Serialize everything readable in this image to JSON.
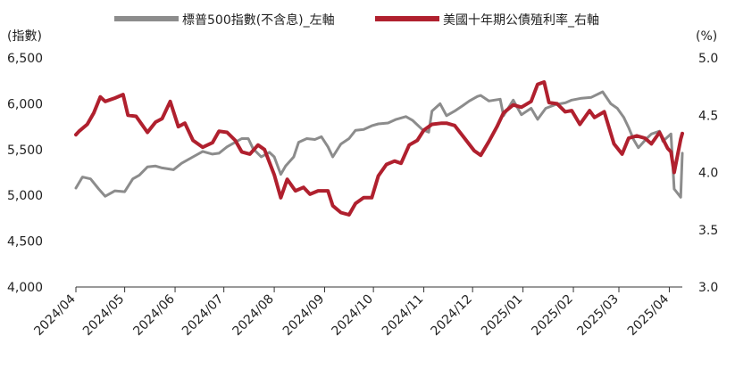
{
  "chart_data": {
    "type": "line",
    "left_axis": {
      "title": "(指數)",
      "ylim": [
        4000,
        6500
      ],
      "ticks": [
        "4,000",
        "4,500",
        "5,000",
        "5,500",
        "6,000",
        "6,500"
      ]
    },
    "right_axis": {
      "title": "(%)",
      "ylim": [
        3.0,
        5.0
      ],
      "ticks": [
        "3.0",
        "3.5",
        "4.0",
        "4.5",
        "5.0"
      ]
    },
    "x_ticks": [
      "2024/04",
      "2024/05",
      "2024/06",
      "2024/07",
      "2024/08",
      "2024/09",
      "2024/10",
      "2024/11",
      "2024/12",
      "2025/01",
      "2025/02",
      "2025/03",
      "2025/04"
    ],
    "series": [
      {
        "name": "標普500指數(不含息)_左軸",
        "axis": "left",
        "color": "#8c8c8c",
        "x": [
          "2024/04/01",
          "2024/04/05",
          "2024/04/10",
          "2024/04/15",
          "2024/04/19",
          "2024/04/25",
          "2024/05/01",
          "2024/05/06",
          "2024/05/10",
          "2024/05/15",
          "2024/05/20",
          "2024/05/24",
          "2024/05/31",
          "2024/06/05",
          "2024/06/12",
          "2024/06/18",
          "2024/06/24",
          "2024/06/28",
          "2024/07/03",
          "2024/07/08",
          "2024/07/12",
          "2024/07/16",
          "2024/07/19",
          "2024/07/24",
          "2024/07/29",
          "2024/08/01",
          "2024/08/05",
          "2024/08/08",
          "2024/08/13",
          "2024/08/16",
          "2024/08/21",
          "2024/08/26",
          "2024/08/30",
          "2024/09/03",
          "2024/09/06",
          "2024/09/11",
          "2024/09/16",
          "2024/09/20",
          "2024/09/25",
          "2024/09/30",
          "2024/10/04",
          "2024/10/10",
          "2024/10/15",
          "2024/10/21",
          "2024/10/25",
          "2024/10/31",
          "2024/11/04",
          "2024/11/06",
          "2024/11/11",
          "2024/11/15",
          "2024/11/20",
          "2024/11/25",
          "2024/11/29",
          "2024/12/04",
          "2024/12/06",
          "2024/12/11",
          "2024/12/18",
          "2024/12/20",
          "2024/12/26",
          "2024/12/31",
          "2025/01/06",
          "2025/01/10",
          "2025/01/15",
          "2025/01/21",
          "2025/01/27",
          "2025/01/31",
          "2025/02/06",
          "2025/02/12",
          "2025/02/19",
          "2025/02/24",
          "2025/02/28",
          "2025/03/04",
          "2025/03/07",
          "2025/03/10",
          "2025/03/13",
          "2025/03/18",
          "2025/03/21",
          "2025/03/26",
          "2025/03/28",
          "2025/04/02",
          "2025/04/04",
          "2025/04/08",
          "2025/04/09"
        ],
        "values": [
          5080,
          5200,
          5180,
          5070,
          4990,
          5050,
          5040,
          5180,
          5220,
          5310,
          5320,
          5300,
          5280,
          5350,
          5420,
          5480,
          5450,
          5460,
          5530,
          5580,
          5620,
          5620,
          5510,
          5420,
          5470,
          5420,
          5230,
          5320,
          5420,
          5580,
          5620,
          5610,
          5640,
          5530,
          5420,
          5560,
          5620,
          5710,
          5720,
          5760,
          5780,
          5790,
          5830,
          5860,
          5820,
          5720,
          5690,
          5920,
          6000,
          5870,
          5920,
          5980,
          6030,
          6080,
          6090,
          6030,
          6050,
          5870,
          6040,
          5880,
          5950,
          5830,
          5950,
          5990,
          6010,
          6040,
          6060,
          6070,
          6130,
          6000,
          5950,
          5850,
          5740,
          5610,
          5520,
          5620,
          5670,
          5700,
          5590,
          5670,
          5070,
          4980,
          5460
        ]
      },
      {
        "name": "美國十年期公債殖利率_右軸",
        "axis": "right",
        "color": "#b0202e",
        "x": [
          "2024/04/01",
          "2024/04/03",
          "2024/04/08",
          "2024/04/12",
          "2024/04/16",
          "2024/04/19",
          "2024/04/25",
          "2024/04/30",
          "2024/05/03",
          "2024/05/08",
          "2024/05/15",
          "2024/05/20",
          "2024/05/24",
          "2024/05/29",
          "2024/06/03",
          "2024/06/07",
          "2024/06/12",
          "2024/06/18",
          "2024/06/24",
          "2024/06/28",
          "2024/07/03",
          "2024/07/08",
          "2024/07/12",
          "2024/07/17",
          "2024/07/22",
          "2024/07/26",
          "2024/08/01",
          "2024/08/05",
          "2024/08/09",
          "2024/08/14",
          "2024/08/19",
          "2024/08/23",
          "2024/08/28",
          "2024/09/03",
          "2024/09/06",
          "2024/09/11",
          "2024/09/16",
          "2024/09/20",
          "2024/09/25",
          "2024/09/30",
          "2024/10/04",
          "2024/10/09",
          "2024/10/14",
          "2024/10/18",
          "2024/10/23",
          "2024/10/28",
          "2024/11/01",
          "2024/11/06",
          "2024/11/12",
          "2024/11/15",
          "2024/11/20",
          "2024/11/26",
          "2024/12/02",
          "2024/12/06",
          "2024/12/11",
          "2024/12/16",
          "2024/12/20",
          "2024/12/26",
          "2024/12/31",
          "2025/01/06",
          "2025/01/10",
          "2025/01/14",
          "2025/01/17",
          "2025/01/22",
          "2025/01/27",
          "2025/01/31",
          "2025/02/05",
          "2025/02/11",
          "2025/02/14",
          "2025/02/20",
          "2025/02/26",
          "2025/03/03",
          "2025/03/07",
          "2025/03/12",
          "2025/03/17",
          "2025/03/21",
          "2025/03/26",
          "2025/03/31",
          "2025/04/02",
          "2025/04/04",
          "2025/04/08",
          "2025/04/09"
        ],
        "values": [
          4.33,
          4.36,
          4.42,
          4.52,
          4.66,
          4.62,
          4.65,
          4.68,
          4.5,
          4.49,
          4.35,
          4.44,
          4.47,
          4.62,
          4.4,
          4.43,
          4.28,
          4.22,
          4.26,
          4.36,
          4.35,
          4.28,
          4.18,
          4.16,
          4.24,
          4.2,
          3.98,
          3.78,
          3.94,
          3.84,
          3.87,
          3.81,
          3.84,
          3.84,
          3.71,
          3.65,
          3.63,
          3.73,
          3.78,
          3.78,
          3.97,
          4.07,
          4.1,
          4.08,
          4.24,
          4.28,
          4.37,
          4.42,
          4.43,
          4.43,
          4.41,
          4.3,
          4.19,
          4.15,
          4.27,
          4.4,
          4.52,
          4.59,
          4.57,
          4.62,
          4.77,
          4.79,
          4.61,
          4.6,
          4.53,
          4.54,
          4.42,
          4.54,
          4.48,
          4.53,
          4.25,
          4.16,
          4.3,
          4.32,
          4.3,
          4.25,
          4.35,
          4.21,
          4.18,
          4.0,
          4.29,
          4.34
        ]
      }
    ]
  }
}
